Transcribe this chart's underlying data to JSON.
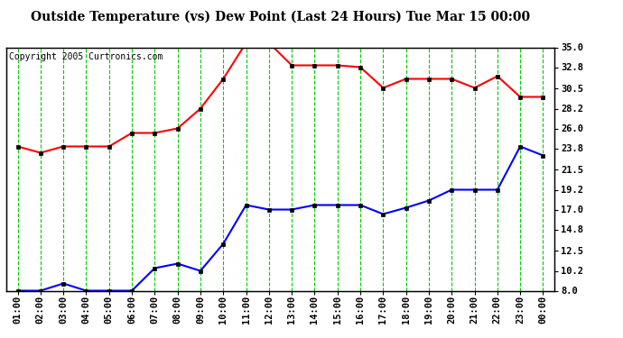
{
  "title": "Outside Temperature (vs) Dew Point (Last 24 Hours) Tue Mar 15 00:00",
  "copyright": "Copyright 2005 Curtronics.com",
  "x_labels": [
    "01:00",
    "02:00",
    "03:00",
    "04:00",
    "05:00",
    "06:00",
    "07:00",
    "08:00",
    "09:00",
    "10:00",
    "11:00",
    "12:00",
    "13:00",
    "14:00",
    "15:00",
    "16:00",
    "17:00",
    "18:00",
    "19:00",
    "20:00",
    "21:00",
    "22:00",
    "23:00",
    "00:00"
  ],
  "temp_red": [
    24.0,
    23.3,
    24.0,
    24.0,
    24.0,
    25.5,
    25.5,
    26.0,
    28.2,
    31.5,
    35.5,
    35.5,
    33.0,
    33.0,
    33.0,
    32.8,
    30.5,
    31.5,
    31.5,
    31.5,
    30.5,
    31.8,
    29.5,
    29.5
  ],
  "dew_blue": [
    8.0,
    8.0,
    8.8,
    8.0,
    8.0,
    8.0,
    10.5,
    11.0,
    10.2,
    13.2,
    17.5,
    17.0,
    17.0,
    17.5,
    17.5,
    17.5,
    16.5,
    17.2,
    18.0,
    19.2,
    19.2,
    19.2,
    24.0,
    23.0
  ],
  "yticks_right": [
    8.0,
    10.2,
    12.5,
    14.8,
    17.0,
    19.2,
    21.5,
    23.8,
    26.0,
    28.2,
    30.5,
    32.8,
    35.0
  ],
  "ymin": 8.0,
  "ymax": 35.0,
  "bg_color": "#ffffff",
  "grid_color": "#00cc00",
  "red_color": "#ff0000",
  "blue_color": "#0000ff",
  "marker_color": "#000000",
  "title_fontsize": 10,
  "copyright_fontsize": 7,
  "tick_fontsize": 7.5
}
